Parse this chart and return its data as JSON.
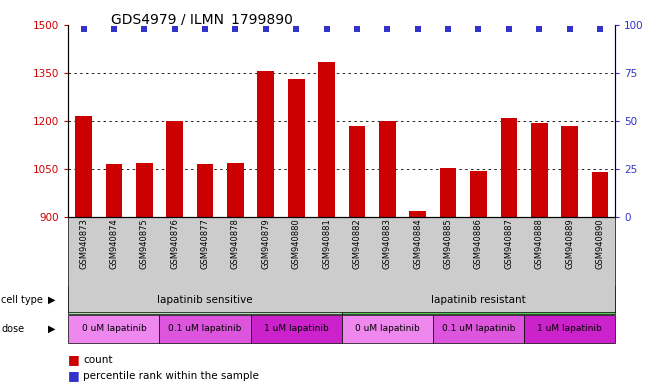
{
  "title": "GDS4979 / ILMN_1799890",
  "samples": [
    "GSM940873",
    "GSM940874",
    "GSM940875",
    "GSM940876",
    "GSM940877",
    "GSM940878",
    "GSM940879",
    "GSM940880",
    "GSM940881",
    "GSM940882",
    "GSM940883",
    "GSM940884",
    "GSM940885",
    "GSM940886",
    "GSM940887",
    "GSM940888",
    "GSM940889",
    "GSM940890"
  ],
  "counts": [
    1215,
    1065,
    1070,
    1200,
    1065,
    1070,
    1355,
    1330,
    1385,
    1185,
    1200,
    920,
    1052,
    1045,
    1210,
    1195,
    1185,
    1040
  ],
  "percentile_ranks": [
    98,
    98,
    98,
    98,
    98,
    98,
    98,
    98,
    98,
    98,
    98,
    98,
    98,
    98,
    98,
    98,
    98,
    98
  ],
  "bar_color": "#cc0000",
  "dot_color": "#3333cc",
  "ylim_left": [
    900,
    1500
  ],
  "ylim_right": [
    0,
    100
  ],
  "yticks_left": [
    900,
    1050,
    1200,
    1350,
    1500
  ],
  "yticks_right": [
    0,
    25,
    50,
    75,
    100
  ],
  "cell_type_groups": [
    {
      "label": "lapatinib sensitive",
      "start": 0,
      "end": 9,
      "color": "#aaddaa"
    },
    {
      "label": "lapatinib resistant",
      "start": 9,
      "end": 18,
      "color": "#55cc55"
    }
  ],
  "dose_groups": [
    {
      "label": "0 uM lapatinib",
      "start": 0,
      "end": 3,
      "color": "#ee88ee"
    },
    {
      "label": "0.1 uM lapatinib",
      "start": 3,
      "end": 6,
      "color": "#dd55dd"
    },
    {
      "label": "1 uM lapatinib",
      "start": 6,
      "end": 9,
      "color": "#cc22cc"
    },
    {
      "label": "0 uM lapatinib",
      "start": 9,
      "end": 12,
      "color": "#ee88ee"
    },
    {
      "label": "0.1 uM lapatinib",
      "start": 12,
      "end": 15,
      "color": "#dd55dd"
    },
    {
      "label": "1 uM lapatinib",
      "start": 15,
      "end": 18,
      "color": "#cc22cc"
    }
  ],
  "background_color": "#ffffff",
  "xtick_bg_color": "#cccccc",
  "grid_color": "#000000",
  "title_fontsize": 10,
  "bar_width": 0.55
}
